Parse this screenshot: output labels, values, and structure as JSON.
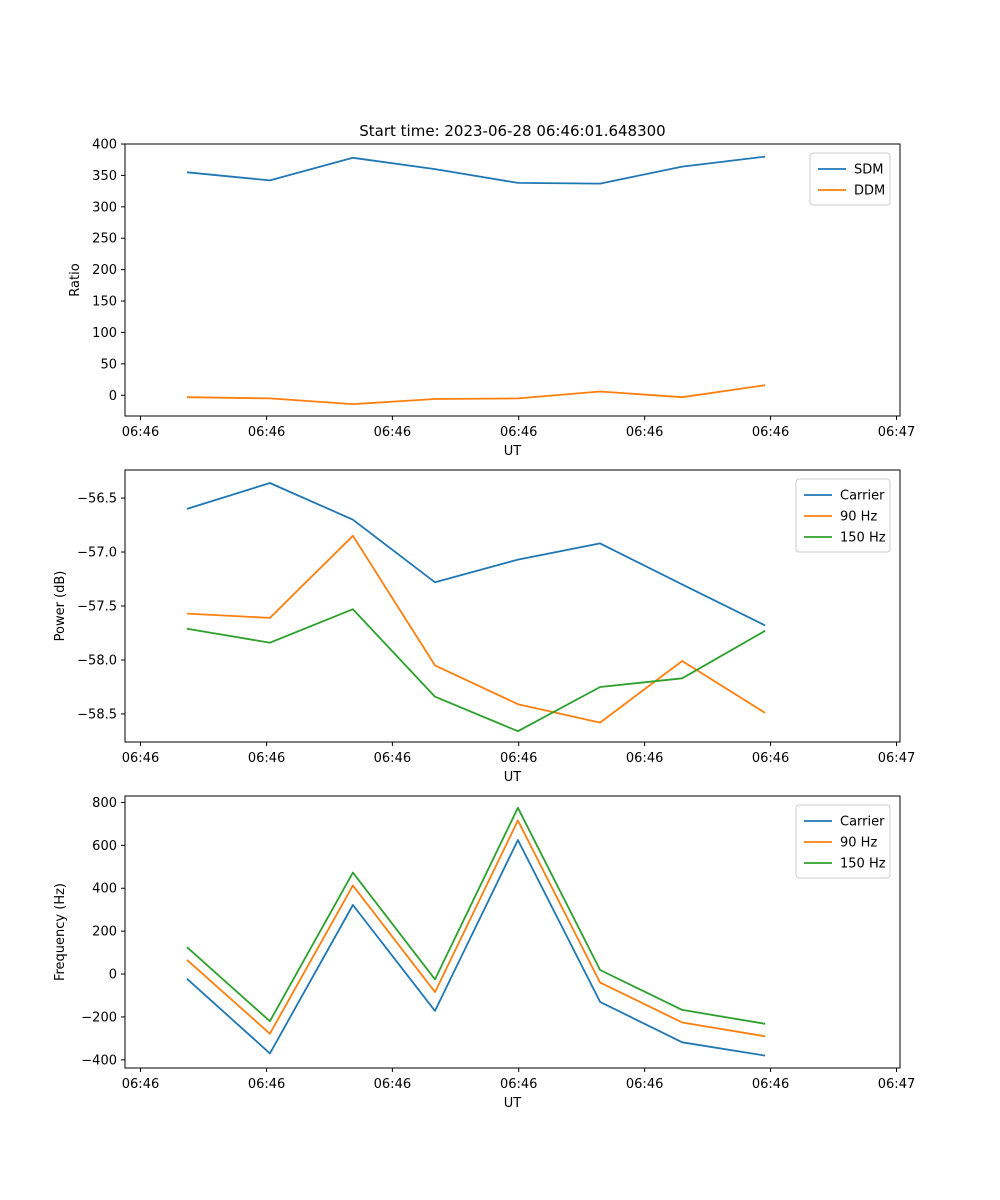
{
  "figure": {
    "title": "Start time: 2023-06-28 06:46:01.648300"
  },
  "colors": {
    "blue": "#1f77b4",
    "orange": "#ff7f0e",
    "green": "#2ca02c"
  },
  "chart_data": [
    {
      "type": "line",
      "xlabel": "UT",
      "ylabel": "Ratio",
      "x_tick_labels": [
        "06:46",
        "06:46",
        "06:46",
        "06:46",
        "06:46",
        "06:46",
        "06:47"
      ],
      "y_ticks": [
        0,
        50,
        100,
        150,
        200,
        250,
        300,
        350,
        400
      ],
      "ylim": [
        -33,
        400
      ],
      "xlim": [
        0,
        1
      ],
      "x": [
        0.08,
        0.187,
        0.294,
        0.4,
        0.507,
        0.613,
        0.719,
        0.826
      ],
      "legend_position": "top-right",
      "series": [
        {
          "name": "SDM",
          "color": "#1f77b4",
          "values": [
            355,
            342,
            378,
            360,
            338,
            337,
            364,
            380
          ]
        },
        {
          "name": "DDM",
          "color": "#ff7f0e",
          "values": [
            -3,
            -5,
            -14,
            -6,
            -5,
            6,
            -3,
            16
          ]
        }
      ]
    },
    {
      "type": "line",
      "xlabel": "UT",
      "ylabel": "Power (dB)",
      "x_tick_labels": [
        "06:46",
        "06:46",
        "06:46",
        "06:46",
        "06:46",
        "06:46",
        "06:47"
      ],
      "y_ticks": [
        -58.5,
        -58.0,
        -57.5,
        -57.0,
        -56.5
      ],
      "y_tick_labels": [
        "−58.5",
        "−58.0",
        "−57.5",
        "−57.0",
        "−56.5"
      ],
      "ylim": [
        -58.76,
        -56.24
      ],
      "xlim": [
        0,
        1
      ],
      "x": [
        0.08,
        0.187,
        0.294,
        0.4,
        0.507,
        0.613,
        0.719,
        0.826
      ],
      "legend_position": "top-right",
      "series": [
        {
          "name": "Carrier",
          "color": "#1f77b4",
          "values": [
            -56.6,
            -56.36,
            -56.7,
            -57.28,
            -57.07,
            -56.92,
            -57.3,
            -57.68
          ]
        },
        {
          "name": "90 Hz",
          "color": "#ff7f0e",
          "values": [
            -57.57,
            -57.61,
            -56.85,
            -58.05,
            -58.41,
            -58.58,
            -58.01,
            -58.49
          ]
        },
        {
          "name": "150 Hz",
          "color": "#2ca02c",
          "values": [
            -57.71,
            -57.84,
            -57.53,
            -58.34,
            -58.66,
            -58.25,
            -58.17,
            -57.73
          ]
        }
      ]
    },
    {
      "type": "line",
      "xlabel": "UT",
      "ylabel": "Frequency (Hz)",
      "x_tick_labels": [
        "06:46",
        "06:46",
        "06:46",
        "06:46",
        "06:46",
        "06:46",
        "06:47"
      ],
      "y_ticks": [
        -400,
        -200,
        0,
        200,
        400,
        600,
        800
      ],
      "y_tick_labels": [
        "−400",
        "−200",
        "0",
        "200",
        "400",
        "600",
        "800"
      ],
      "ylim": [
        -438,
        830
      ],
      "xlim": [
        0,
        1
      ],
      "x": [
        0.08,
        0.187,
        0.294,
        0.4,
        0.507,
        0.613,
        0.719,
        0.826
      ],
      "legend_position": "top-right",
      "series": [
        {
          "name": "Carrier",
          "color": "#1f77b4",
          "values": [
            -22,
            -370,
            322,
            -172,
            625,
            -130,
            -318,
            -380
          ]
        },
        {
          "name": "90 Hz",
          "color": "#ff7f0e",
          "values": [
            66,
            -278,
            413,
            -84,
            716,
            -40,
            -226,
            -290
          ]
        },
        {
          "name": "150 Hz",
          "color": "#2ca02c",
          "values": [
            125,
            -220,
            473,
            -25,
            775,
            19,
            -167,
            -232
          ]
        }
      ]
    }
  ]
}
